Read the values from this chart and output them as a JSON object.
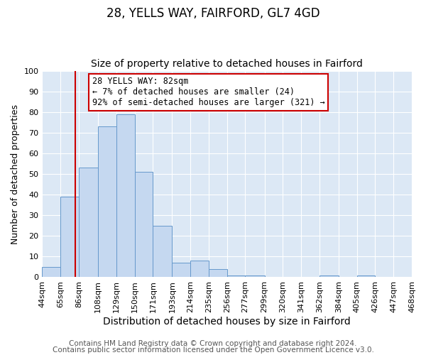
{
  "title": "28, YELLS WAY, FAIRFORD, GL7 4GD",
  "subtitle": "Size of property relative to detached houses in Fairford",
  "xlabel": "Distribution of detached houses by size in Fairford",
  "ylabel": "Number of detached properties",
  "bin_labels": [
    "44sqm",
    "65sqm",
    "86sqm",
    "108sqm",
    "129sqm",
    "150sqm",
    "171sqm",
    "193sqm",
    "214sqm",
    "235sqm",
    "256sqm",
    "277sqm",
    "299sqm",
    "320sqm",
    "341sqm",
    "362sqm",
    "384sqm",
    "405sqm",
    "426sqm",
    "447sqm",
    "468sqm"
  ],
  "bin_edges": [
    44,
    65,
    86,
    108,
    129,
    150,
    171,
    193,
    214,
    235,
    256,
    277,
    299,
    320,
    341,
    362,
    384,
    405,
    426,
    447,
    468
  ],
  "bar_heights": [
    5,
    39,
    53,
    73,
    79,
    51,
    25,
    7,
    8,
    4,
    1,
    1,
    0,
    0,
    0,
    1,
    0,
    1,
    0,
    0,
    0
  ],
  "bar_color": "#c5d8f0",
  "bar_edge_color": "#6699cc",
  "property_size": 82,
  "vline_color": "#cc0000",
  "annotation_line1": "28 YELLS WAY: 82sqm",
  "annotation_line2": "← 7% of detached houses are smaller (24)",
  "annotation_line3": "92% of semi-detached houses are larger (321) →",
  "annotation_box_color": "#cc0000",
  "ylim": [
    0,
    100
  ],
  "footer_line1": "Contains HM Land Registry data © Crown copyright and database right 2024.",
  "footer_line2": "Contains public sector information licensed under the Open Government Licence v3.0.",
  "fig_background_color": "#ffffff",
  "plot_background_color": "#dce8f5",
  "grid_color": "#ffffff",
  "title_fontsize": 12,
  "subtitle_fontsize": 10,
  "axis_label_fontsize": 10,
  "tick_label_fontsize": 8,
  "annotation_fontsize": 8.5,
  "footer_fontsize": 7.5,
  "ylabel_fontsize": 9
}
